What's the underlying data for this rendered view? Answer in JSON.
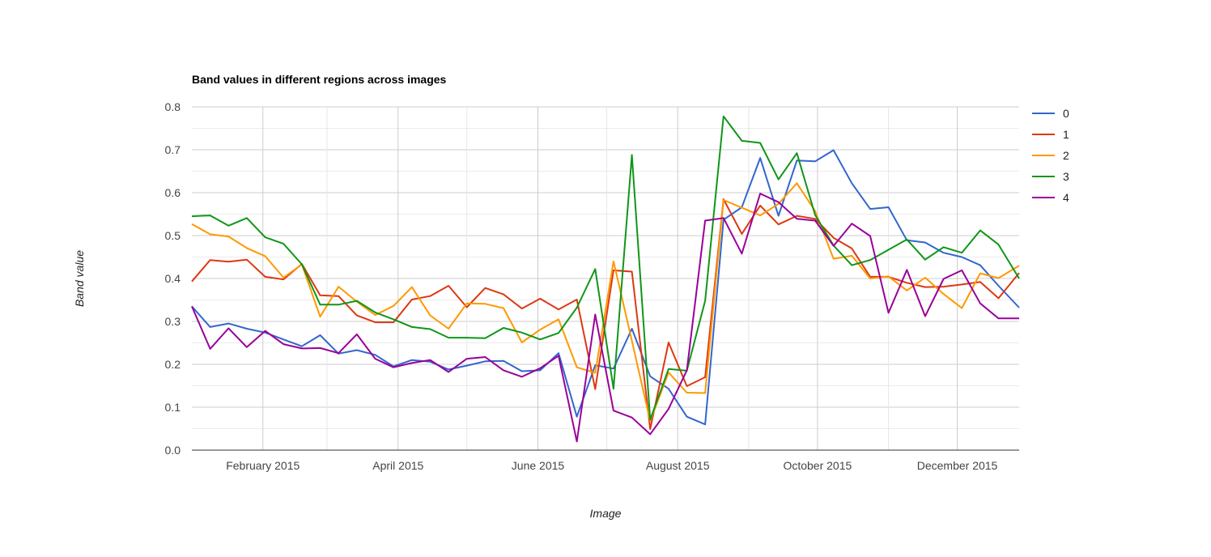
{
  "chart_data": {
    "type": "line",
    "title": "Band values in different regions across images",
    "xlabel": "Image",
    "ylabel": "Band value",
    "x_range": [
      "2015-01-01",
      "2015-12-28"
    ],
    "ylim": [
      0,
      0.8
    ],
    "y_ticks": [
      "0.0",
      "0.1",
      "0.2",
      "0.3",
      "0.4",
      "0.5",
      "0.6",
      "0.7",
      "0.8"
    ],
    "x_ticks": [
      {
        "date": "2015-02-01",
        "label": "February 2015"
      },
      {
        "date": "2015-04-01",
        "label": "April 2015"
      },
      {
        "date": "2015-06-01",
        "label": "June 2015"
      },
      {
        "date": "2015-08-01",
        "label": "August 2015"
      },
      {
        "date": "2015-10-01",
        "label": "October 2015"
      },
      {
        "date": "2015-12-01",
        "label": "December 2015"
      }
    ],
    "x_minor_ticks": [
      "2015-03-01",
      "2015-05-01",
      "2015-07-01",
      "2015-09-01",
      "2015-11-01"
    ],
    "grid": true,
    "legend_position": "right",
    "x": [
      "2015-01-01",
      "2015-01-09",
      "2015-01-17",
      "2015-01-25",
      "2015-02-02",
      "2015-02-10",
      "2015-02-18",
      "2015-02-26",
      "2015-03-06",
      "2015-03-14",
      "2015-03-22",
      "2015-03-30",
      "2015-04-07",
      "2015-04-15",
      "2015-04-23",
      "2015-05-01",
      "2015-05-09",
      "2015-05-17",
      "2015-05-25",
      "2015-06-02",
      "2015-06-10",
      "2015-06-18",
      "2015-06-26",
      "2015-07-04",
      "2015-07-12",
      "2015-07-20",
      "2015-07-28",
      "2015-08-05",
      "2015-08-13",
      "2015-08-21",
      "2015-08-29",
      "2015-09-06",
      "2015-09-14",
      "2015-09-22",
      "2015-09-30",
      "2015-10-08",
      "2015-10-16",
      "2015-10-24",
      "2015-11-01",
      "2015-11-09",
      "2015-11-17",
      "2015-11-25",
      "2015-12-03",
      "2015-12-11",
      "2015-12-19",
      "2015-12-28"
    ],
    "series": [
      {
        "name": "0",
        "color": "#3366cc",
        "values": [
          0.335,
          0.287,
          0.295,
          0.283,
          0.274,
          0.258,
          0.242,
          0.268,
          0.225,
          0.233,
          0.222,
          0.195,
          0.21,
          0.206,
          0.188,
          0.197,
          0.207,
          0.208,
          0.184,
          0.186,
          0.226,
          0.078,
          0.198,
          0.19,
          0.283,
          0.172,
          0.143,
          0.078,
          0.06,
          0.537,
          0.566,
          0.681,
          0.546,
          0.675,
          0.673,
          0.699,
          0.622,
          0.562,
          0.566,
          0.489,
          0.484,
          0.46,
          0.45,
          0.431,
          0.383,
          0.332
        ]
      },
      {
        "name": "1",
        "color": "#dc3912",
        "values": [
          0.393,
          0.443,
          0.439,
          0.444,
          0.404,
          0.398,
          0.434,
          0.361,
          0.359,
          0.314,
          0.298,
          0.298,
          0.351,
          0.359,
          0.383,
          0.333,
          0.378,
          0.363,
          0.33,
          0.353,
          0.328,
          0.351,
          0.142,
          0.419,
          0.416,
          0.049,
          0.251,
          0.149,
          0.17,
          0.585,
          0.504,
          0.57,
          0.526,
          0.546,
          0.539,
          0.495,
          0.47,
          0.404,
          0.404,
          0.39,
          0.38,
          0.381,
          0.386,
          0.392,
          0.354,
          0.413
        ]
      },
      {
        "name": "2",
        "color": "#ff9900",
        "values": [
          0.527,
          0.503,
          0.498,
          0.471,
          0.452,
          0.402,
          0.433,
          0.311,
          0.381,
          0.346,
          0.315,
          0.336,
          0.38,
          0.314,
          0.283,
          0.342,
          0.341,
          0.331,
          0.251,
          0.281,
          0.305,
          0.193,
          0.18,
          0.44,
          0.255,
          0.068,
          0.181,
          0.134,
          0.133,
          0.583,
          0.565,
          0.547,
          0.574,
          0.622,
          0.557,
          0.446,
          0.453,
          0.4,
          0.405,
          0.372,
          0.402,
          0.364,
          0.331,
          0.412,
          0.401,
          0.43
        ]
      },
      {
        "name": "3",
        "color": "#109618",
        "values": [
          0.545,
          0.547,
          0.523,
          0.541,
          0.496,
          0.481,
          0.433,
          0.339,
          0.339,
          0.348,
          0.321,
          0.305,
          0.287,
          0.282,
          0.262,
          0.262,
          0.261,
          0.285,
          0.274,
          0.258,
          0.273,
          0.332,
          0.422,
          0.143,
          0.688,
          0.071,
          0.189,
          0.185,
          0.348,
          0.778,
          0.721,
          0.716,
          0.631,
          0.692,
          0.548,
          0.477,
          0.431,
          0.443,
          0.467,
          0.491,
          0.444,
          0.473,
          0.46,
          0.512,
          0.479,
          0.4
        ]
      },
      {
        "name": "4",
        "color": "#990099",
        "values": [
          0.335,
          0.236,
          0.284,
          0.24,
          0.278,
          0.247,
          0.237,
          0.238,
          0.226,
          0.27,
          0.213,
          0.193,
          0.203,
          0.21,
          0.182,
          0.213,
          0.217,
          0.186,
          0.171,
          0.191,
          0.22,
          0.02,
          0.316,
          0.092,
          0.076,
          0.037,
          0.096,
          0.186,
          0.535,
          0.541,
          0.458,
          0.598,
          0.578,
          0.539,
          0.535,
          0.476,
          0.528,
          0.499,
          0.32,
          0.42,
          0.312,
          0.399,
          0.419,
          0.342,
          0.307,
          0.307
        ]
      }
    ]
  }
}
